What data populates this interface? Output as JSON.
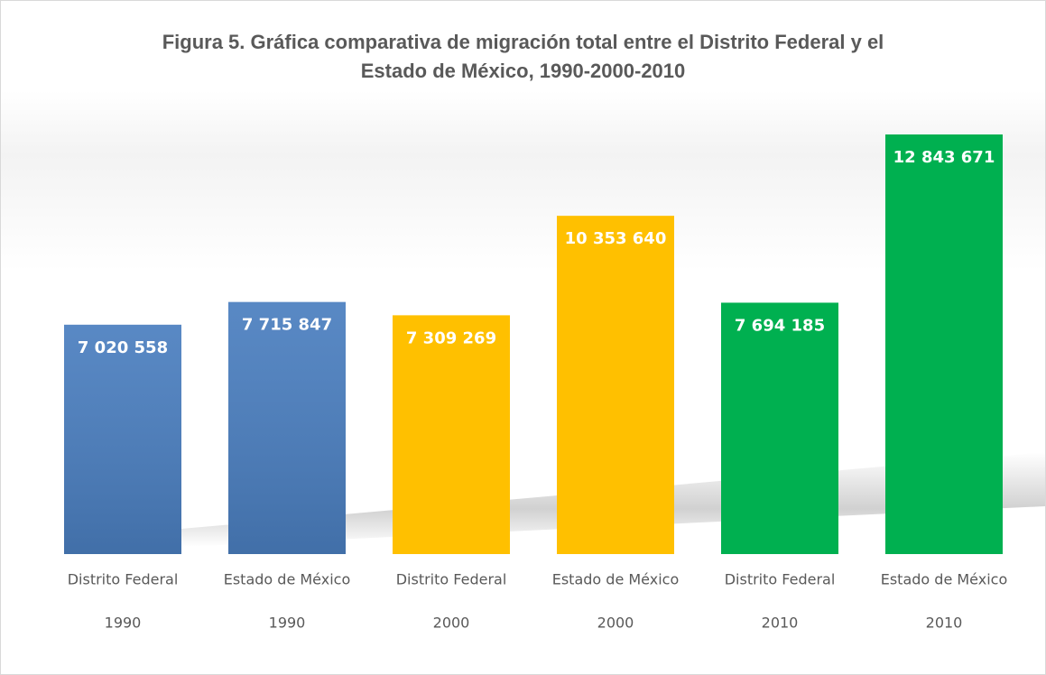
{
  "chart_data": {
    "type": "bar",
    "title": "Figura 5. Gráfica comparativa de migración total entre el Distrito Federal y el Estado de México, 1990-2000-2010",
    "categories": [
      [
        "Distrito Federal",
        "1990"
      ],
      [
        "Estado de México",
        "1990"
      ],
      [
        "Distrito Federal",
        "2000"
      ],
      [
        "Estado de México",
        "2000"
      ],
      [
        "Distrito Federal",
        "2010"
      ],
      [
        "Estado de México",
        "2010"
      ]
    ],
    "values": [
      7020558,
      7715847,
      7309269,
      10353640,
      7694185,
      12843671
    ],
    "value_labels": [
      "7 020 558",
      "7 715 847",
      "7 309 269",
      "10 353 640",
      "7 694 185",
      "12 843 671"
    ],
    "colors": [
      "#4a7ebf",
      "#4a7ebf",
      "#ffc000",
      "#ffc000",
      "#00b050",
      "#00b050"
    ]
  }
}
